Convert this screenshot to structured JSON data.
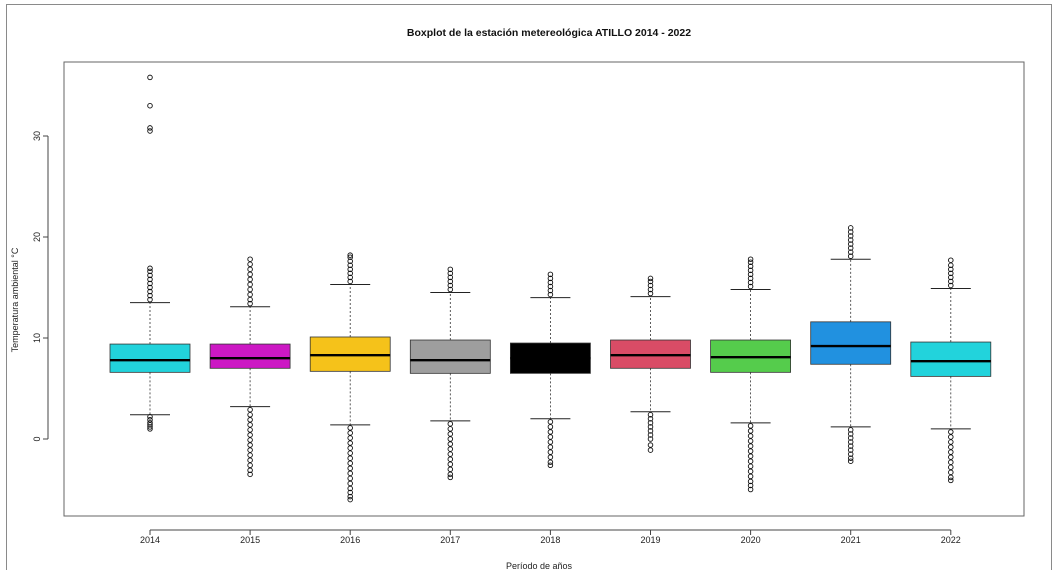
{
  "chart_data": {
    "type": "boxplot",
    "title": "Boxplot de la estación metereológica ATILLO 2014 - 2022",
    "xlabel": "Período de años",
    "ylabel": "Temperatura ambiental °C",
    "ylim": [
      -7,
      37
    ],
    "yticks": [
      0,
      10,
      20,
      30
    ],
    "categories": [
      "2014",
      "2015",
      "2016",
      "2017",
      "2018",
      "2019",
      "2020",
      "2021",
      "2022"
    ],
    "grid": false,
    "series": [
      {
        "category": "2014",
        "color": "#22d3dc",
        "whisker_low": 2.4,
        "q1": 6.6,
        "median": 7.8,
        "q3": 9.4,
        "whisker_high": 13.5,
        "outliers_low": [
          2.2,
          1.9,
          1.6,
          1.4,
          1.2,
          1.0
        ],
        "outliers_high": [
          13.8,
          14.2,
          14.6,
          15.0,
          15.4,
          15.8,
          16.2,
          16.6,
          16.9,
          30.5,
          30.8,
          33.0,
          35.8
        ]
      },
      {
        "category": "2015",
        "color": "#cc18c4",
        "whisker_low": 3.2,
        "q1": 7.0,
        "median": 8.0,
        "q3": 9.4,
        "whisker_high": 13.1,
        "outliers_low": [
          2.9,
          2.4,
          1.9,
          1.4,
          0.9,
          0.4,
          -0.1,
          -0.6,
          -1.1,
          -1.6,
          -2.1,
          -2.6,
          -3.1,
          -3.5
        ],
        "outliers_high": [
          13.4,
          13.8,
          14.3,
          14.8,
          15.3,
          15.8,
          16.3,
          16.8,
          17.3,
          17.8
        ]
      },
      {
        "category": "2016",
        "color": "#f5c21a",
        "whisker_low": 1.4,
        "q1": 6.7,
        "median": 8.3,
        "q3": 10.1,
        "whisker_high": 15.3,
        "outliers_low": [
          1.1,
          0.6,
          0.1,
          -0.4,
          -0.9,
          -1.4,
          -1.9,
          -2.4,
          -2.9,
          -3.4,
          -3.9,
          -4.4,
          -4.9,
          -5.3,
          -5.7,
          -6.0
        ],
        "outliers_high": [
          15.6,
          16.0,
          16.4,
          16.8,
          17.2,
          17.6,
          18.0,
          18.2
        ]
      },
      {
        "category": "2017",
        "color": "#9e9e9e",
        "whisker_low": 1.8,
        "q1": 6.5,
        "median": 7.8,
        "q3": 9.8,
        "whisker_high": 14.5,
        "outliers_low": [
          1.5,
          1.0,
          0.5,
          0.0,
          -0.5,
          -1.0,
          -1.5,
          -2.0,
          -2.5,
          -3.0,
          -3.5,
          -3.8
        ],
        "outliers_high": [
          14.8,
          15.2,
          15.6,
          16.0,
          16.4,
          16.8
        ]
      },
      {
        "category": "2018",
        "color": "#000000",
        "whisker_low": 2.0,
        "q1": 6.5,
        "median": 8.0,
        "q3": 9.5,
        "whisker_high": 14.0,
        "outliers_low": [
          1.7,
          1.2,
          0.7,
          0.2,
          -0.3,
          -0.8,
          -1.3,
          -1.8,
          -2.3,
          -2.6
        ],
        "outliers_high": [
          14.3,
          14.7,
          15.1,
          15.5,
          15.9,
          16.3
        ]
      },
      {
        "category": "2019",
        "color": "#d94c66",
        "whisker_low": 2.7,
        "q1": 7.0,
        "median": 8.3,
        "q3": 9.8,
        "whisker_high": 14.1,
        "outliers_low": [
          2.4,
          2.0,
          1.6,
          1.2,
          0.8,
          0.4,
          0.0,
          -0.6,
          -1.1
        ],
        "outliers_high": [
          14.4,
          14.8,
          15.2,
          15.6,
          15.9
        ]
      },
      {
        "category": "2020",
        "color": "#55cc4c",
        "whisker_low": 1.6,
        "q1": 6.6,
        "median": 8.1,
        "q3": 9.8,
        "whisker_high": 14.8,
        "outliers_low": [
          1.3,
          0.8,
          0.3,
          -0.2,
          -0.7,
          -1.2,
          -1.7,
          -2.2,
          -2.7,
          -3.2,
          -3.7,
          -4.2,
          -4.6,
          -5.0
        ],
        "outliers_high": [
          15.1,
          15.5,
          15.9,
          16.3,
          16.7,
          17.1,
          17.5,
          17.8
        ]
      },
      {
        "category": "2021",
        "color": "#2191e0",
        "whisker_low": 1.2,
        "q1": 7.4,
        "median": 9.2,
        "q3": 11.6,
        "whisker_high": 17.8,
        "outliers_low": [
          0.9,
          0.5,
          0.1,
          -0.3,
          -0.7,
          -1.1,
          -1.5,
          -1.9,
          -2.2
        ],
        "outliers_high": [
          18.1,
          18.5,
          18.9,
          19.3,
          19.7,
          20.1,
          20.5,
          20.9
        ]
      },
      {
        "category": "2022",
        "color": "#22d3dc",
        "whisker_low": 1.0,
        "q1": 6.2,
        "median": 7.7,
        "q3": 9.6,
        "whisker_high": 14.9,
        "outliers_low": [
          0.7,
          0.2,
          -0.3,
          -0.8,
          -1.3,
          -1.8,
          -2.3,
          -2.8,
          -3.3,
          -3.8,
          -4.1
        ],
        "outliers_high": [
          15.2,
          15.6,
          16.0,
          16.4,
          16.8,
          17.2,
          17.7
        ]
      }
    ]
  }
}
